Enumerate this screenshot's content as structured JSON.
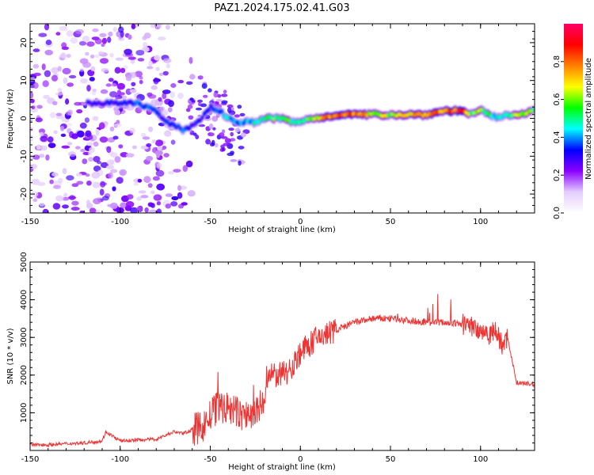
{
  "title": "PAZ1.2024.175.02.41.G03",
  "chart_data": [
    {
      "type": "heatmap",
      "xlabel": "Height of straight line (km)",
      "ylabel": "Frequency (Hz)",
      "xlim": [
        -150,
        130
      ],
      "ylim": [
        -25,
        25
      ],
      "xticks": [
        -150,
        -100,
        -50,
        0,
        50,
        100
      ],
      "yticks": [
        -20,
        -10,
        0,
        10,
        20
      ],
      "colorbar": {
        "label": "Normalized spectral amplitude",
        "range": [
          0,
          1
        ],
        "ticks": [
          0.0,
          0.2,
          0.4,
          0.6,
          0.8
        ],
        "colormap": [
          "#ffffff",
          "#e3ccff",
          "#8a00ff",
          "#0000ff",
          "#00ffff",
          "#00ff00",
          "#ffff00",
          "#ff8000",
          "#ff0000",
          "#ff0066"
        ]
      },
      "ridge": {
        "x": [
          -115,
          -100,
          -90,
          -80,
          -75,
          -70,
          -65,
          -60,
          -55,
          -50,
          -45,
          -40,
          -35,
          -30,
          -25,
          -20,
          -15,
          -10,
          -5,
          0,
          5,
          10,
          20,
          30,
          40,
          50,
          60,
          70,
          80,
          90,
          95,
          100,
          105,
          110,
          115,
          120,
          130
        ],
        "frequency": [
          4,
          4,
          4,
          2,
          -1,
          -2,
          -3,
          -2,
          0,
          3,
          2,
          0,
          -1,
          -1,
          -1,
          0,
          0,
          0,
          -1,
          -1,
          0,
          0,
          1,
          1,
          1,
          1,
          1,
          1,
          2,
          2,
          1,
          2,
          1,
          0,
          1,
          1,
          2
        ],
        "amplitude": [
          0.3,
          0.3,
          0.35,
          0.35,
          0.3,
          0.35,
          0.35,
          0.3,
          0.3,
          0.3,
          0.35,
          0.45,
          0.4,
          0.4,
          0.45,
          0.5,
          0.55,
          0.55,
          0.5,
          0.5,
          0.55,
          0.65,
          0.85,
          0.75,
          0.65,
          0.6,
          0.7,
          0.8,
          0.75,
          0.9,
          0.55,
          0.6,
          0.5,
          0.45,
          0.5,
          0.6,
          0.55
        ]
      }
    },
    {
      "type": "line",
      "xlabel": "Height of straight line (km)",
      "ylabel": "SNR (10 * v/v)",
      "xlim": [
        -150,
        130
      ],
      "ylim": [
        0,
        5000
      ],
      "xticks": [
        -150,
        -100,
        -50,
        0,
        50,
        100
      ],
      "yticks": [
        1000,
        2000,
        3000,
        4000,
        5000
      ],
      "color": "#ee3333",
      "series": [
        {
          "x": [
            -150,
            -140,
            -130,
            -120,
            -110,
            -108,
            -100,
            -90,
            -80,
            -75,
            -70,
            -65,
            -60,
            -55,
            -50,
            -45,
            -40,
            -35,
            -30,
            -25,
            -20,
            -18,
            -15,
            -10,
            -5,
            0,
            5,
            10,
            15,
            20,
            25,
            30,
            40,
            50,
            60,
            70,
            80,
            90,
            95,
            100,
            105,
            108,
            110,
            112,
            115,
            120,
            130
          ],
          "y": [
            150,
            150,
            180,
            200,
            250,
            500,
            250,
            280,
            300,
            400,
            500,
            450,
            550,
            600,
            900,
            1200,
            1100,
            1000,
            900,
            1000,
            1300,
            1900,
            2000,
            2000,
            2200,
            2600,
            2800,
            3000,
            3100,
            3200,
            3300,
            3400,
            3500,
            3500,
            3450,
            3400,
            3400,
            3350,
            3300,
            3200,
            3100,
            3200,
            3000,
            2800,
            3000,
            1800,
            1750
          ]
        }
      ]
    }
  ]
}
